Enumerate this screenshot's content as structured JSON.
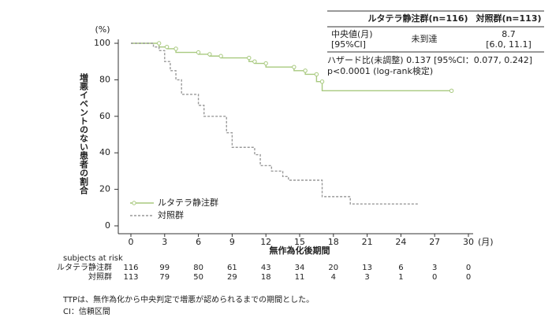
{
  "chart_data": {
    "type": "line",
    "y_unit": "(%)",
    "x_unit": "(月)",
    "ylabel": "増悪イベントのない患者の割合",
    "xlabel": "無作為化後期間",
    "xlim": [
      0,
      30
    ],
    "ylim": [
      0,
      100
    ],
    "xticks": [
      0,
      3,
      6,
      9,
      12,
      15,
      18,
      21,
      24,
      27,
      30
    ],
    "yticks": [
      0,
      20,
      40,
      60,
      80,
      100
    ],
    "legend": "lower-left",
    "series": [
      {
        "name": "ルタテラ静注群",
        "color": "#a8c97f",
        "dashed": false,
        "markers": true,
        "x": [
          0,
          2.5,
          2.5,
          3.2,
          3.2,
          4,
          4,
          6,
          6,
          7,
          7,
          8,
          8,
          10.5,
          10.5,
          11,
          11,
          12,
          12,
          14.5,
          14.5,
          15.5,
          15.5,
          16.5,
          16.5,
          17,
          17,
          28.5
        ],
        "values": [
          100,
          100,
          98,
          98,
          97,
          97,
          95,
          95,
          94,
          94,
          93,
          93,
          92,
          92,
          90,
          90,
          89,
          89,
          87,
          87,
          85,
          85,
          83,
          83,
          79,
          79,
          74,
          74
        ]
      },
      {
        "name": "対照群",
        "color": "#999999",
        "dashed": true,
        "markers": false,
        "x": [
          0,
          2,
          2,
          2.5,
          2.5,
          3,
          3,
          3.5,
          3.5,
          4,
          4,
          4.5,
          4.5,
          6,
          6,
          6.5,
          6.5,
          8.5,
          8.5,
          9,
          9,
          11,
          11,
          11.5,
          11.5,
          12.5,
          12.5,
          13.5,
          13.5,
          14,
          14,
          17,
          17,
          19.5,
          19.5,
          25.5
        ],
        "values": [
          100,
          100,
          98,
          98,
          96,
          96,
          90,
          90,
          85,
          85,
          80,
          80,
          72,
          72,
          66,
          66,
          60,
          60,
          51,
          51,
          43,
          43,
          39,
          39,
          33,
          33,
          30,
          30,
          27,
          27,
          25,
          25,
          16,
          16,
          12,
          12
        ]
      }
    ],
    "summary_table": {
      "headers": [
        "ルタテラ静注群(n=116)",
        "対照群(n=113)"
      ],
      "row_label": [
        "中央値(月)",
        "[95%CI]"
      ],
      "cells": [
        [
          "未到達"
        ],
        [
          "8.7",
          "[6.0, 11.1]"
        ]
      ]
    },
    "annotations": [
      "ハザード比(未調整) 0.137 [95%CI：0.077, 0.242]",
      "p<0.0001 (log-rank検定)"
    ],
    "risk_table": {
      "title": "subjects at risk",
      "rows": [
        {
          "name": "ルタテラ静注群",
          "values": [
            116,
            99,
            80,
            61,
            43,
            34,
            20,
            13,
            6,
            3,
            0
          ]
        },
        {
          "name": "対照群",
          "values": [
            113,
            79,
            50,
            29,
            18,
            11,
            4,
            3,
            1,
            0,
            0
          ]
        }
      ]
    },
    "footnotes": [
      "TTPは、無作為化から中央判定で増悪が認められるまでの期間とした。",
      "CI：信頼区間"
    ]
  }
}
